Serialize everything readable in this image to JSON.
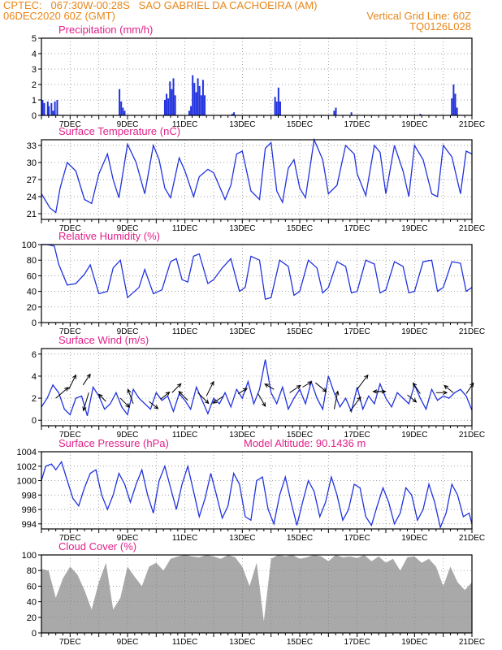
{
  "header": {
    "line1": "CPTEC:   067:30W-00:28S   SAO GABRIEL DA CACHOEIRA (AM)",
    "line2": "06DEC2020 60Z (GMT)",
    "grid_line": "Vertical Grid Line: 60Z",
    "code": "TQ0126L028"
  },
  "colors": {
    "header": "#e8861a",
    "title": "#e0218a",
    "line": "#2233dd",
    "cloud": "#a9a9a9",
    "grid": "#808080"
  },
  "chart_data": [
    {
      "type": "bar",
      "title": "Precipitation (mm/h)",
      "xlabels": [
        "7DEC",
        "9DEC",
        "11DEC",
        "13DEC",
        "15DEC",
        "17DEC",
        "19DEC",
        "21DEC"
      ],
      "xlim": [
        6.0,
        21.0
      ],
      "ylim": [
        0,
        5
      ],
      "yticks": [
        0,
        1,
        2,
        3,
        4,
        5
      ],
      "x": [
        6.04,
        6.1,
        6.22,
        6.26,
        6.35,
        6.41,
        6.47,
        6.55,
        8.72,
        8.78,
        8.84,
        8.9,
        10.3,
        10.36,
        10.42,
        10.48,
        10.54,
        10.6,
        10.66,
        11.15,
        11.21,
        11.27,
        11.33,
        11.39,
        11.45,
        11.51,
        11.57,
        11.63,
        11.69,
        12.65,
        12.71,
        14.14,
        14.2,
        14.26,
        14.32,
        16.2,
        16.26,
        16.8,
        19.2,
        20.3,
        20.36,
        20.42,
        20.48
      ],
      "values": [
        1.0,
        0.8,
        0.9,
        0.6,
        0.8,
        0.3,
        0.9,
        1.0,
        1.7,
        0.9,
        0.5,
        0.3,
        1.0,
        1.4,
        1.1,
        2.2,
        1.7,
        2.4,
        1.3,
        0.3,
        0.6,
        2.6,
        2.1,
        1.5,
        2.4,
        1.9,
        1.3,
        2.3,
        1.3,
        0.1,
        0.2,
        1.2,
        0.9,
        1.8,
        0.9,
        0.3,
        0.5,
        0.2,
        0.1,
        1.1,
        2.0,
        1.4,
        0.5
      ],
      "grid": true
    },
    {
      "type": "line",
      "title": "Surface Temperature (nC)",
      "xlabels": [
        "7DEC",
        "9DEC",
        "11DEC",
        "13DEC",
        "15DEC",
        "17DEC",
        "19DEC",
        "21DEC"
      ],
      "xlim": [
        6.0,
        21.0
      ],
      "ylim": [
        20,
        34
      ],
      "yticks": [
        21,
        24,
        27,
        30,
        33
      ],
      "x": [
        6.0,
        6.3,
        6.5,
        6.65,
        6.9,
        7.2,
        7.5,
        7.75,
        8.0,
        8.3,
        8.5,
        8.7,
        9.0,
        9.3,
        9.6,
        9.9,
        10.1,
        10.3,
        10.5,
        10.8,
        11.0,
        11.3,
        11.5,
        11.8,
        12.0,
        12.4,
        12.6,
        12.8,
        13.0,
        13.3,
        13.6,
        13.8,
        14.0,
        14.2,
        14.4,
        14.6,
        14.8,
        15.0,
        15.2,
        15.5,
        15.8,
        16.0,
        16.3,
        16.6,
        16.9,
        17.0,
        17.3,
        17.6,
        17.8,
        18.0,
        18.3,
        18.6,
        18.8,
        19.0,
        19.3,
        19.6,
        19.8,
        20.0,
        20.3,
        20.6,
        20.8,
        21.0
      ],
      "values": [
        24.5,
        22.0,
        21.2,
        25.5,
        30.0,
        28.5,
        23.5,
        22.8,
        28.0,
        31.5,
        27.0,
        23.8,
        33.2,
        30.0,
        24.5,
        33.0,
        30.5,
        25.5,
        23.8,
        30.8,
        28.5,
        24.0,
        27.5,
        28.8,
        28.2,
        23.5,
        26.0,
        31.5,
        32.0,
        25.0,
        23.5,
        32.5,
        33.5,
        25.0,
        23.0,
        29.0,
        30.5,
        25.5,
        23.8,
        34.0,
        30.5,
        24.5,
        26.0,
        33.0,
        31.5,
        28.0,
        24.2,
        33.0,
        31.8,
        24.5,
        33.0,
        28.5,
        24.0,
        33.0,
        30.5,
        24.5,
        24.0,
        33.0,
        31.0,
        24.5,
        32.0,
        31.5
      ],
      "grid": true
    },
    {
      "type": "line",
      "title": "Relative Humidity (%)",
      "xlabels": [
        "7DEC",
        "9DEC",
        "11DEC",
        "13DEC",
        "15DEC",
        "17DEC",
        "19DEC",
        "21DEC"
      ],
      "xlim": [
        6.0,
        21.0
      ],
      "ylim": [
        0,
        100
      ],
      "yticks": [
        0,
        20,
        40,
        60,
        80,
        100
      ],
      "x": [
        6.0,
        6.2,
        6.45,
        6.6,
        6.9,
        7.2,
        7.5,
        7.7,
        8.0,
        8.3,
        8.5,
        8.75,
        9.0,
        9.4,
        9.6,
        9.9,
        10.2,
        10.5,
        10.7,
        10.9,
        11.1,
        11.3,
        11.5,
        11.8,
        12.0,
        12.3,
        12.6,
        12.9,
        13.1,
        13.3,
        13.6,
        13.8,
        14.0,
        14.3,
        14.6,
        14.8,
        15.0,
        15.3,
        15.6,
        15.8,
        16.0,
        16.3,
        16.6,
        16.8,
        17.0,
        17.3,
        17.6,
        17.8,
        18.0,
        18.3,
        18.6,
        18.8,
        19.0,
        19.3,
        19.6,
        19.8,
        20.0,
        20.3,
        20.6,
        20.8,
        21.0
      ],
      "values": [
        100,
        100,
        98,
        75,
        48,
        50,
        62,
        74,
        37,
        40,
        70,
        80,
        32,
        45,
        68,
        37,
        42,
        78,
        82,
        55,
        52,
        85,
        88,
        50,
        55,
        70,
        82,
        40,
        45,
        85,
        80,
        30,
        32,
        80,
        72,
        35,
        40,
        80,
        70,
        38,
        45,
        78,
        72,
        38,
        40,
        80,
        75,
        38,
        42,
        78,
        72,
        38,
        40,
        78,
        80,
        40,
        45,
        78,
        76,
        40,
        45
      ],
      "grid": true
    },
    {
      "type": "line",
      "title": "Surface Wind (m/s)",
      "xlabels": [
        "7DEC",
        "9DEC",
        "11DEC",
        "13DEC",
        "15DEC",
        "17DEC",
        "19DEC",
        "21DEC"
      ],
      "xlim": [
        6.0,
        21.0
      ],
      "ylim": [
        -0.5,
        6.5
      ],
      "yticks": [
        0,
        2,
        4,
        6
      ],
      "x": [
        6.0,
        6.2,
        6.4,
        6.6,
        6.8,
        7.0,
        7.2,
        7.4,
        7.6,
        7.8,
        8.0,
        8.2,
        8.4,
        8.6,
        8.8,
        9.0,
        9.2,
        9.4,
        9.6,
        9.8,
        10.0,
        10.2,
        10.4,
        10.6,
        10.8,
        11.0,
        11.2,
        11.4,
        11.6,
        11.8,
        12.0,
        12.2,
        12.4,
        12.6,
        12.8,
        13.0,
        13.2,
        13.4,
        13.6,
        13.8,
        14.0,
        14.2,
        14.4,
        14.6,
        14.8,
        15.0,
        15.2,
        15.4,
        15.6,
        15.8,
        16.0,
        16.2,
        16.4,
        16.6,
        16.8,
        17.0,
        17.2,
        17.4,
        17.6,
        17.8,
        18.0,
        18.2,
        18.4,
        18.6,
        18.8,
        19.0,
        19.2,
        19.4,
        19.6,
        19.8,
        20.0,
        20.2,
        20.4,
        20.6,
        20.8,
        21.0
      ],
      "values": [
        1.2,
        2.0,
        3.2,
        2.5,
        1.0,
        0.5,
        2.0,
        2.2,
        0.4,
        3.0,
        2.2,
        1.0,
        1.5,
        2.5,
        1.2,
        0.5,
        2.8,
        2.0,
        1.5,
        1.0,
        2.5,
        1.8,
        2.2,
        0.8,
        2.4,
        1.8,
        1.0,
        3.0,
        1.8,
        0.6,
        2.0,
        1.5,
        2.5,
        1.2,
        2.8,
        2.0,
        3.5,
        1.5,
        2.8,
        5.5,
        2.5,
        1.5,
        3.0,
        1.0,
        2.0,
        2.8,
        1.5,
        3.5,
        2.0,
        1.0,
        4.0,
        2.5,
        1.2,
        2.0,
        0.8,
        3.0,
        1.0,
        2.2,
        1.5,
        3.3,
        2.0,
        1.2,
        2.5,
        2.0,
        1.5,
        3.2,
        2.0,
        1.0,
        2.8,
        1.8,
        2.2,
        2.0,
        2.5,
        2.8,
        2.2,
        0.9
      ],
      "vectors": [
        {
          "x": 6.5,
          "y": 2.0,
          "u": 0.7,
          "v": 0.6
        },
        {
          "x": 6.95,
          "y": 2.8,
          "u": 0.4,
          "v": 0.8
        },
        {
          "x": 7.45,
          "y": 3.2,
          "u": 0.4,
          "v": 0.6
        },
        {
          "x": 7.65,
          "y": 2.5,
          "u": -0.3,
          "v": -1.0
        },
        {
          "x": 8.25,
          "y": 1.7,
          "u": -0.4,
          "v": 0.4
        },
        {
          "x": 8.75,
          "y": 2.0,
          "u": 0.5,
          "v": -0.5
        },
        {
          "x": 9.2,
          "y": 1.5,
          "u": -0.3,
          "v": 0.8
        },
        {
          "x": 9.75,
          "y": 1.7,
          "u": 0.5,
          "v": -0.4
        },
        {
          "x": 10.15,
          "y": 1.9,
          "u": 0.5,
          "v": 0.4
        },
        {
          "x": 10.55,
          "y": 2.5,
          "u": 0.5,
          "v": 0.5
        },
        {
          "x": 11.1,
          "y": 1.8,
          "u": -0.5,
          "v": 0.5
        },
        {
          "x": 11.45,
          "y": 2.5,
          "u": 0.6,
          "v": -0.6
        },
        {
          "x": 11.75,
          "y": 2.2,
          "u": 0.4,
          "v": 0.8
        },
        {
          "x": 12.35,
          "y": 2.2,
          "u": -0.6,
          "v": -0.4
        },
        {
          "x": 12.85,
          "y": 2.4,
          "u": 0.5,
          "v": 0.3
        },
        {
          "x": 13.55,
          "y": 2.4,
          "u": 0.4,
          "v": -0.7
        },
        {
          "x": 14.1,
          "y": 2.8,
          "u": -0.5,
          "v": 0.3
        },
        {
          "x": 14.65,
          "y": 2.5,
          "u": 0.6,
          "v": 0.4
        },
        {
          "x": 15.1,
          "y": 3.0,
          "u": 0.5,
          "v": 0.3
        },
        {
          "x": 15.55,
          "y": 3.4,
          "u": 0.6,
          "v": -0.5
        },
        {
          "x": 16.2,
          "y": 1.0,
          "u": 0.2,
          "v": 1.0
        },
        {
          "x": 16.75,
          "y": 0.8,
          "u": 0.6,
          "v": 0.8
        },
        {
          "x": 17.0,
          "y": 2.8,
          "u": 0.6,
          "v": 0.8
        },
        {
          "x": 17.55,
          "y": 2.6,
          "u": 0.7,
          "v": 0.0
        },
        {
          "x": 18.0,
          "y": 2.6,
          "u": -0.7,
          "v": 0.0
        },
        {
          "x": 18.75,
          "y": 2.3,
          "u": 0.5,
          "v": -0.4
        },
        {
          "x": 19.2,
          "y": 2.4,
          "u": -0.4,
          "v": 0.6
        },
        {
          "x": 19.75,
          "y": 2.5,
          "u": 0.6,
          "v": 0.0
        },
        {
          "x": 20.35,
          "y": 2.5,
          "u": -0.5,
          "v": 0.4
        },
        {
          "x": 20.8,
          "y": 2.4,
          "u": 0.4,
          "v": 0.6
        }
      ],
      "grid": true
    },
    {
      "type": "line",
      "title": "Surface Pressure (hPa)",
      "annotation": "Model Altitude: 90.1436 m",
      "xlabels": [
        "7DEC",
        "9DEC",
        "11DEC",
        "13DEC",
        "15DEC",
        "17DEC",
        "19DEC",
        "21DEC"
      ],
      "xlim": [
        6.0,
        21.0
      ],
      "ylim": [
        993.3,
        1004
      ],
      "yticks": [
        994,
        996,
        998,
        1000,
        1002,
        1004
      ],
      "x": [
        6.0,
        6.15,
        6.35,
        6.5,
        6.7,
        6.9,
        7.1,
        7.3,
        7.5,
        7.7,
        7.9,
        8.1,
        8.3,
        8.5,
        8.7,
        8.9,
        9.1,
        9.3,
        9.5,
        9.7,
        9.9,
        10.1,
        10.3,
        10.5,
        10.7,
        10.9,
        11.1,
        11.3,
        11.5,
        11.7,
        11.9,
        12.1,
        12.3,
        12.5,
        12.7,
        12.9,
        13.1,
        13.3,
        13.5,
        13.7,
        13.9,
        14.1,
        14.3,
        14.5,
        14.7,
        14.9,
        15.1,
        15.3,
        15.5,
        15.7,
        15.9,
        16.1,
        16.3,
        16.5,
        16.7,
        16.9,
        17.1,
        17.3,
        17.5,
        17.7,
        17.9,
        18.1,
        18.3,
        18.5,
        18.7,
        18.9,
        19.1,
        19.3,
        19.5,
        19.7,
        19.9,
        20.1,
        20.3,
        20.5,
        20.7,
        20.9,
        21.0
      ],
      "values": [
        1000.0,
        1002.0,
        1002.3,
        1001.5,
        1002.6,
        1000.0,
        997.5,
        996.5,
        999.0,
        1001.0,
        1001.5,
        998.0,
        996.0,
        998.0,
        1001.0,
        999.5,
        997.0,
        999.5,
        1001.5,
        998.0,
        995.5,
        1000.0,
        1002.0,
        999.0,
        996.0,
        999.5,
        1002.0,
        998.5,
        995.0,
        997.5,
        1001.0,
        998.0,
        994.8,
        996.5,
        1001.0,
        999.5,
        995.0,
        994.5,
        1000.0,
        1000.5,
        996.0,
        994.0,
        998.0,
        1000.5,
        997.0,
        993.8,
        997.0,
        1000.0,
        998.5,
        995.0,
        997.0,
        1000.5,
        998.0,
        994.5,
        996.0,
        999.5,
        999.0,
        995.0,
        993.8,
        996.5,
        999.0,
        997.0,
        994.0,
        995.5,
        999.0,
        998.0,
        994.5,
        996.0,
        999.5,
        997.0,
        993.5,
        995.5,
        999.5,
        998.0,
        995.0,
        995.5,
        994.0
      ],
      "grid": true
    },
    {
      "type": "area",
      "title": "Cloud Cover (%)",
      "xlabels": [
        "7DEC",
        "9DEC",
        "11DEC",
        "13DEC",
        "15DEC",
        "17DEC",
        "19DEC",
        "21DEC"
      ],
      "xlim": [
        6.0,
        21.0
      ],
      "ylim": [
        0,
        100
      ],
      "yticks": [
        0,
        20,
        40,
        60,
        80,
        100
      ],
      "x": [
        6.0,
        6.25,
        6.5,
        6.75,
        7.0,
        7.25,
        7.5,
        7.75,
        8.0,
        8.25,
        8.5,
        8.75,
        9.0,
        9.25,
        9.5,
        9.75,
        10.0,
        10.25,
        10.5,
        10.75,
        11.0,
        11.25,
        11.5,
        11.75,
        12.0,
        12.25,
        12.5,
        12.75,
        13.0,
        13.25,
        13.5,
        13.75,
        14.0,
        14.25,
        14.5,
        14.75,
        15.0,
        15.25,
        15.5,
        15.75,
        16.0,
        16.25,
        16.5,
        16.75,
        17.0,
        17.25,
        17.5,
        17.75,
        18.0,
        18.25,
        18.5,
        18.75,
        19.0,
        19.25,
        19.5,
        19.75,
        20.0,
        20.25,
        20.5,
        20.75,
        21.0
      ],
      "values": [
        82,
        80,
        45,
        70,
        85,
        75,
        55,
        30,
        65,
        90,
        30,
        45,
        85,
        72,
        60,
        85,
        90,
        80,
        95,
        98,
        100,
        98,
        97,
        100,
        98,
        95,
        100,
        97,
        85,
        60,
        90,
        15,
        95,
        100,
        98,
        100,
        95,
        97,
        100,
        98,
        92,
        100,
        97,
        98,
        96,
        100,
        92,
        98,
        90,
        95,
        80,
        97,
        98,
        90,
        95,
        85,
        60,
        85,
        65,
        55,
        65
      ],
      "grid": true
    }
  ]
}
